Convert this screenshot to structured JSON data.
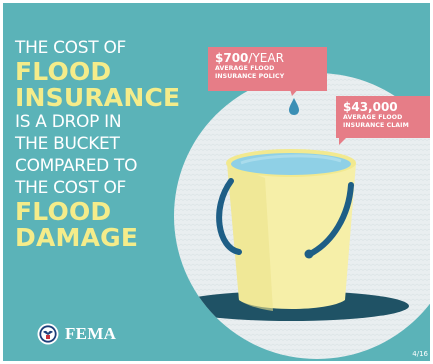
{
  "headline": {
    "line1": "THE COST OF",
    "line2": "FLOOD",
    "line3": "INSURANCE",
    "line4": "IS A DROP IN",
    "line5": "THE BUCKET",
    "line6": "COMPARED TO",
    "line7": "THE COST OF",
    "line8": "FLOOD",
    "line9": "DAMAGE"
  },
  "callouts": {
    "policy": {
      "amount": "$700",
      "unit": "/YEAR",
      "line1": "AVERAGE FLOOD",
      "line2": "INSURANCE POLICY"
    },
    "claim": {
      "amount": "$43,000",
      "line1": "AVERAGE FLOOD",
      "line2": "INSURANCE CLAIM"
    }
  },
  "logo": {
    "text": "FEMA",
    "icon": "dhs-seal-icon"
  },
  "footer": {
    "date": "4/16"
  },
  "colors": {
    "background": "#5bb3b8",
    "highlight": "#f4ec8a",
    "callout": "#e67d87",
    "bucket": "#f6efa8",
    "handle": "#1e5e86",
    "water": "#8fd0e6",
    "circle": "#e9eef0"
  }
}
